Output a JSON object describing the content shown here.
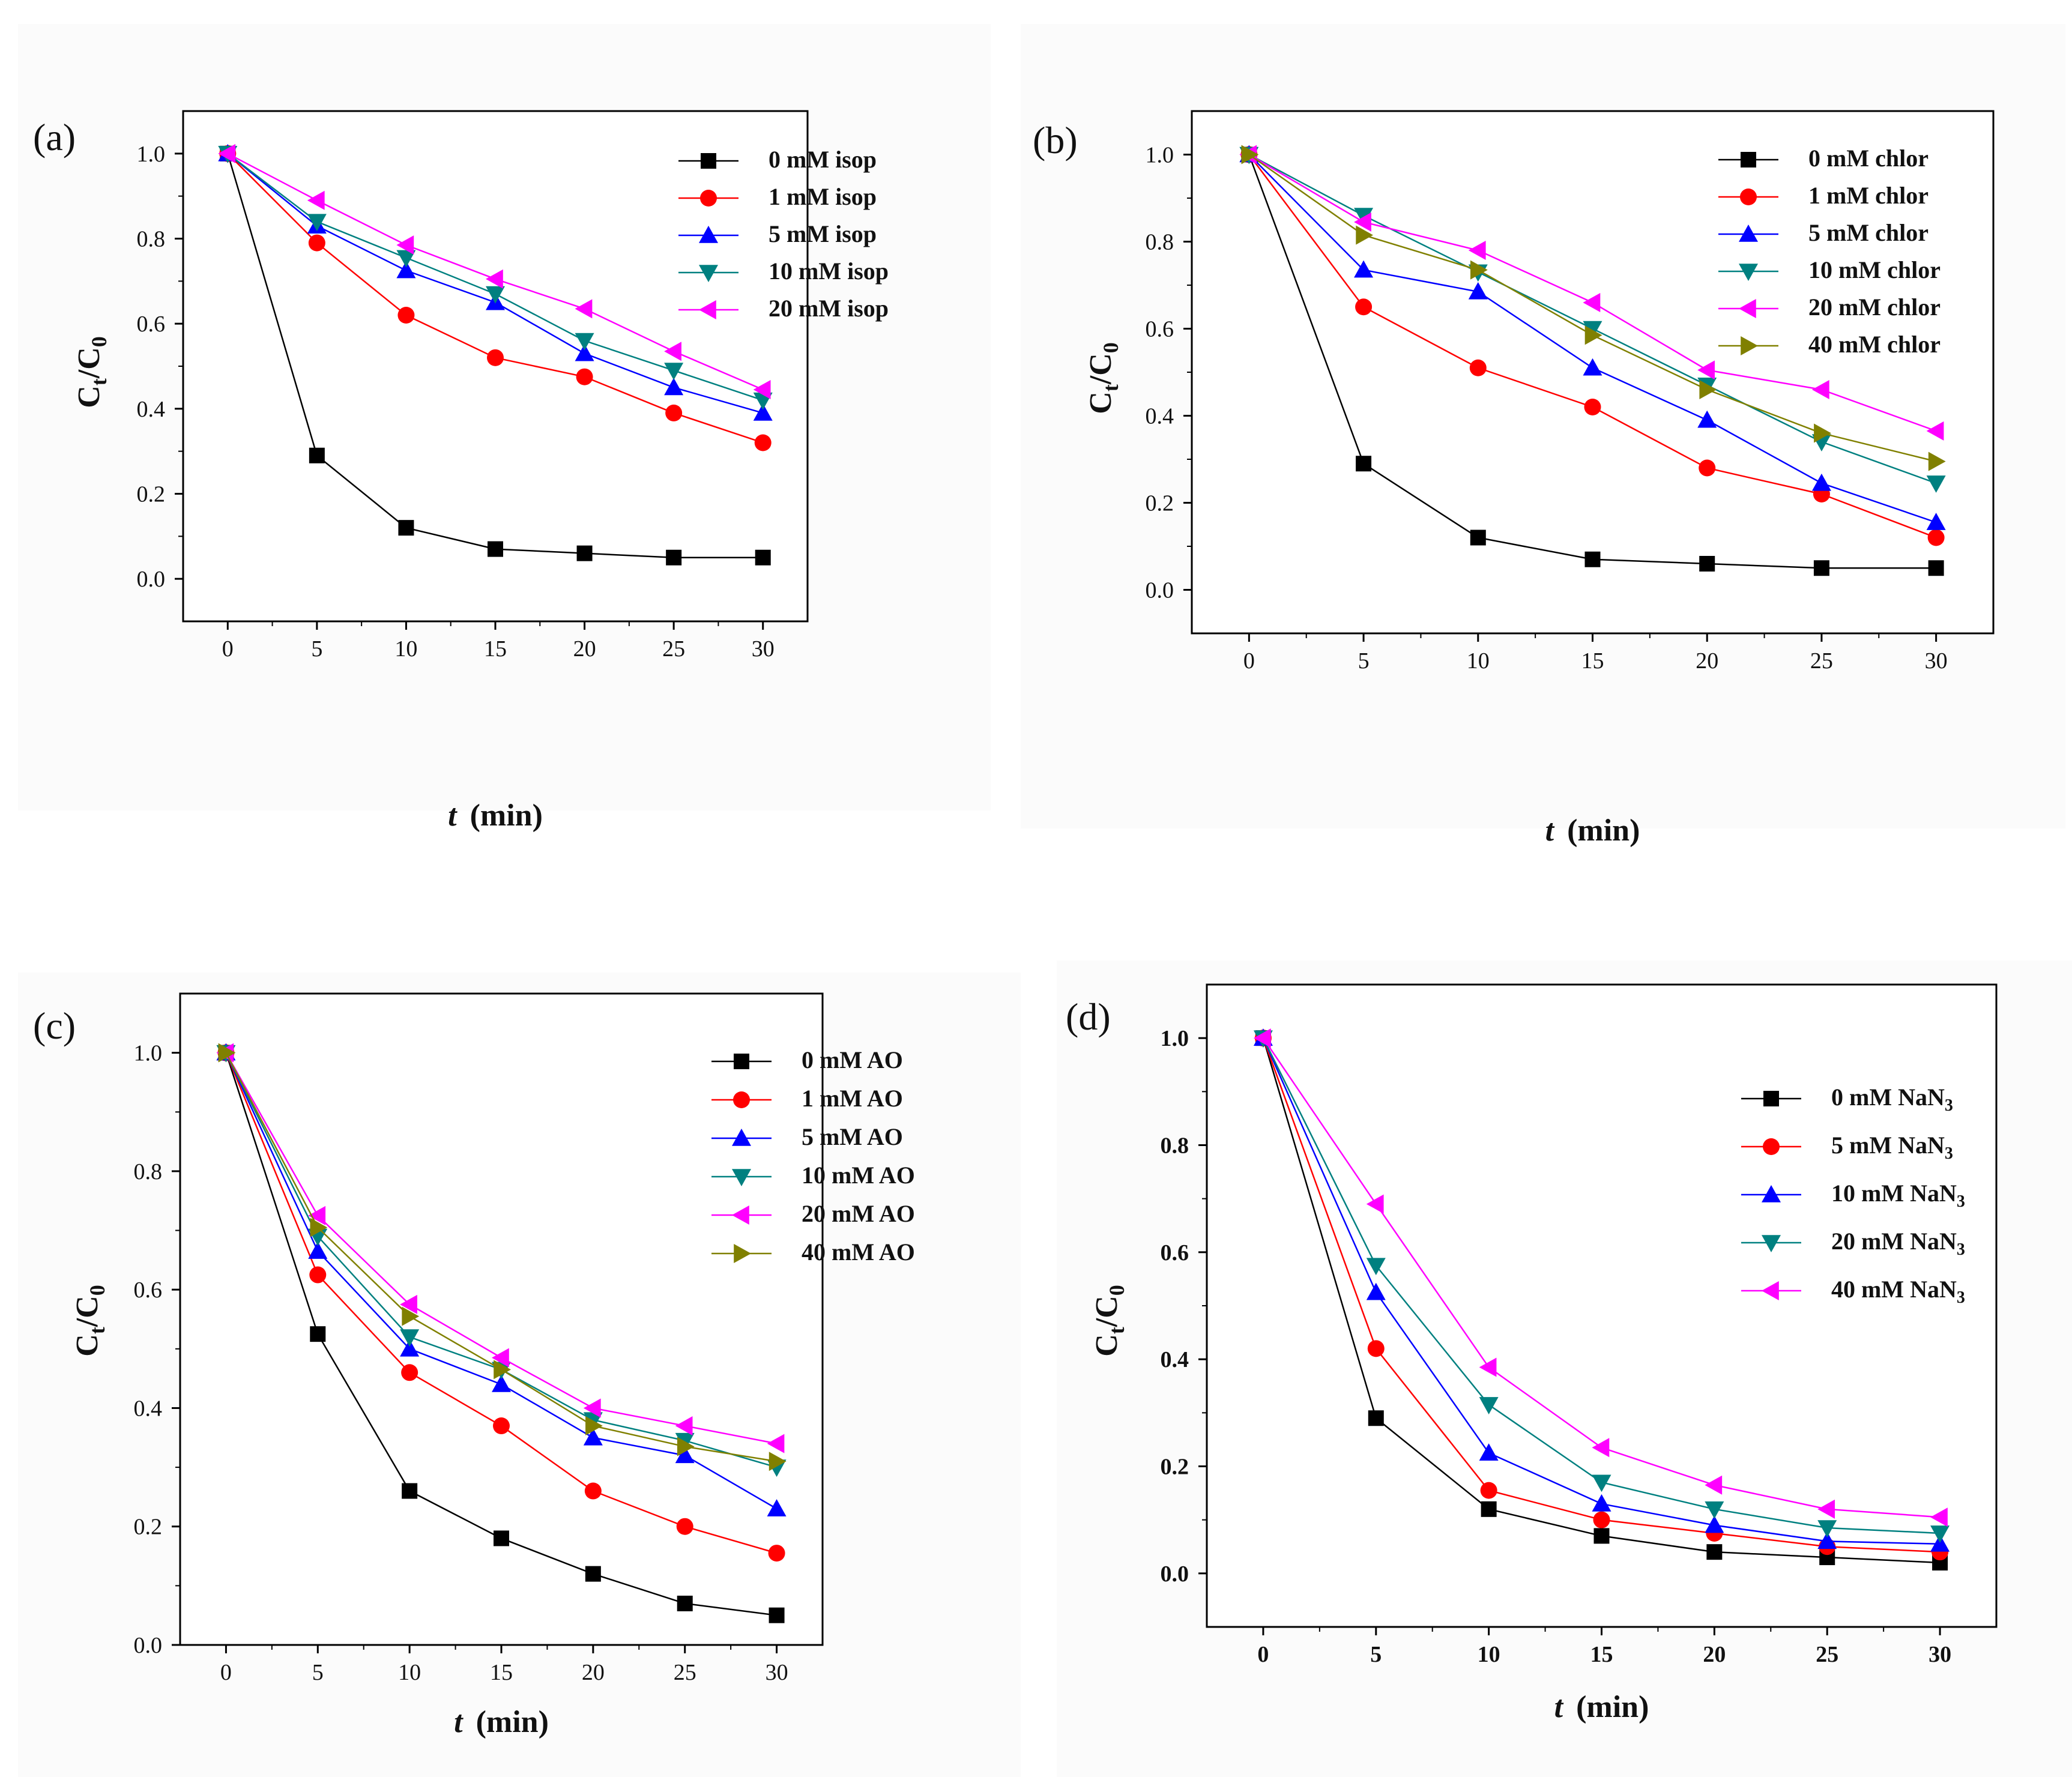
{
  "chart_data": [
    {
      "type": "line",
      "panel_label": "(a)",
      "title": "",
      "xlabel": "t",
      "xlabel_unit": "(min)",
      "ylabel": "Ct/C0",
      "x": [
        0,
        5,
        10,
        15,
        20,
        25,
        30
      ],
      "xlim": [
        -2.5,
        32.5
      ],
      "ylim": [
        -0.1,
        1.1
      ],
      "xticks": [
        "0",
        "5",
        "10",
        "15",
        "20",
        "25",
        "30"
      ],
      "yticks": [
        "0.0",
        "0.2",
        "0.4",
        "0.6",
        "0.8",
        "1.0"
      ],
      "legend_position": "top-right",
      "grid": false,
      "series": [
        {
          "name": "0 mM isop",
          "marker": "square",
          "color": "#000000",
          "values": [
            1.0,
            0.29,
            0.12,
            0.07,
            0.06,
            0.05,
            0.05
          ]
        },
        {
          "name": "1 mM isop",
          "marker": "circle",
          "color": "#ff0000",
          "values": [
            1.0,
            0.79,
            0.62,
            0.52,
            0.475,
            0.39,
            0.32
          ]
        },
        {
          "name": "5 mM isop",
          "marker": "triangle-up",
          "color": "#0000ff",
          "values": [
            1.0,
            0.83,
            0.725,
            0.65,
            0.53,
            0.45,
            0.39
          ]
        },
        {
          "name": "10 mM isop",
          "marker": "triangle-down",
          "color": "#008080",
          "values": [
            1.0,
            0.84,
            0.755,
            0.67,
            0.56,
            0.49,
            0.42
          ]
        },
        {
          "name": "20 mM isop",
          "marker": "triangle-left",
          "color": "#ff00ff",
          "values": [
            1.0,
            0.89,
            0.785,
            0.705,
            0.635,
            0.535,
            0.445
          ]
        }
      ]
    },
    {
      "type": "line",
      "panel_label": "(b)",
      "title": "",
      "xlabel": "t",
      "xlabel_unit": "(min)",
      "ylabel": "Ct/C0",
      "x": [
        0,
        5,
        10,
        15,
        20,
        25,
        30
      ],
      "xlim": [
        -2.5,
        32.5
      ],
      "ylim": [
        -0.1,
        1.1
      ],
      "xticks": [
        "0",
        "5",
        "10",
        "15",
        "20",
        "25",
        "30"
      ],
      "yticks": [
        "0.0",
        "0.2",
        "0.4",
        "0.6",
        "0.8",
        "1.0"
      ],
      "legend_position": "top-right",
      "grid": false,
      "series": [
        {
          "name": "0 mM chlor",
          "marker": "square",
          "color": "#000000",
          "values": [
            1.0,
            0.29,
            0.12,
            0.07,
            0.06,
            0.05,
            0.05
          ]
        },
        {
          "name": "1 mM chlor",
          "marker": "circle",
          "color": "#ff0000",
          "values": [
            1.0,
            0.65,
            0.51,
            0.42,
            0.28,
            0.22,
            0.12
          ]
        },
        {
          "name": "5 mM chlor",
          "marker": "triangle-up",
          "color": "#0000ff",
          "values": [
            1.0,
            0.735,
            0.685,
            0.51,
            0.39,
            0.245,
            0.155
          ]
        },
        {
          "name": "10 mM chlor",
          "marker": "triangle-down",
          "color": "#008080",
          "values": [
            1.0,
            0.86,
            0.73,
            0.6,
            0.47,
            0.34,
            0.245
          ]
        },
        {
          "name": "20 mM chlor",
          "marker": "triangle-left",
          "color": "#ff00ff",
          "values": [
            1.0,
            0.845,
            0.78,
            0.66,
            0.505,
            0.46,
            0.365
          ]
        },
        {
          "name": "40 mM chlor",
          "marker": "triangle-right",
          "color": "#808000",
          "values": [
            1.0,
            0.815,
            0.735,
            0.585,
            0.46,
            0.36,
            0.295
          ]
        }
      ]
    },
    {
      "type": "line",
      "panel_label": "(c)",
      "title": "",
      "xlabel": "t",
      "xlabel_unit": "(min)",
      "ylabel": "Ct/C0",
      "x": [
        0,
        5,
        10,
        15,
        20,
        25,
        30
      ],
      "xlim": [
        -2.5,
        32.5
      ],
      "ylim": [
        0.0,
        1.1
      ],
      "xticks": [
        "0",
        "5",
        "10",
        "15",
        "20",
        "25",
        "30"
      ],
      "yticks": [
        "0.0",
        "0.2",
        "0.4",
        "0.6",
        "0.8",
        "1.0"
      ],
      "legend_position": "top-right",
      "grid": false,
      "series": [
        {
          "name": "0 mM AO",
          "marker": "square",
          "color": "#000000",
          "values": [
            1.0,
            0.525,
            0.26,
            0.18,
            0.12,
            0.07,
            0.05
          ]
        },
        {
          "name": "1 mM AO",
          "marker": "circle",
          "color": "#ff0000",
          "values": [
            1.0,
            0.625,
            0.46,
            0.37,
            0.26,
            0.2,
            0.155
          ]
        },
        {
          "name": "5 mM AO",
          "marker": "triangle-up",
          "color": "#0000ff",
          "values": [
            1.0,
            0.665,
            0.5,
            0.44,
            0.35,
            0.32,
            0.23
          ]
        },
        {
          "name": "10 mM AO",
          "marker": "triangle-down",
          "color": "#008080",
          "values": [
            1.0,
            0.69,
            0.52,
            0.465,
            0.38,
            0.345,
            0.3
          ]
        },
        {
          "name": "20 mM AO",
          "marker": "triangle-left",
          "color": "#ff00ff",
          "values": [
            1.0,
            0.725,
            0.575,
            0.485,
            0.4,
            0.37,
            0.34
          ]
        },
        {
          "name": "40 mM AO",
          "marker": "triangle-right",
          "color": "#808000",
          "values": [
            1.0,
            0.705,
            0.555,
            0.465,
            0.37,
            0.335,
            0.31
          ]
        }
      ]
    },
    {
      "type": "line",
      "panel_label": "(d)",
      "title": "",
      "xlabel": "t",
      "xlabel_unit": "(min)",
      "ylabel": "Ct/C0",
      "x": [
        0,
        5,
        10,
        15,
        20,
        25,
        30
      ],
      "xlim": [
        -2.5,
        32.5
      ],
      "ylim": [
        -0.1,
        1.1
      ],
      "xticks": [
        "0",
        "5",
        "10",
        "15",
        "20",
        "25",
        "30"
      ],
      "yticks": [
        "0.0",
        "0.2",
        "0.4",
        "0.6",
        "0.8",
        "1.0"
      ],
      "legend_position": "top-right",
      "grid": false,
      "series": [
        {
          "name": "0 mM NaN3",
          "marker": "square",
          "color": "#000000",
          "values": [
            1.0,
            0.29,
            0.12,
            0.07,
            0.04,
            0.03,
            0.02
          ]
        },
        {
          "name": "5 mM NaN3",
          "marker": "circle",
          "color": "#ff0000",
          "values": [
            1.0,
            0.42,
            0.155,
            0.1,
            0.075,
            0.05,
            0.04
          ]
        },
        {
          "name": "10 mM NaN3",
          "marker": "triangle-up",
          "color": "#0000ff",
          "values": [
            1.0,
            0.525,
            0.225,
            0.13,
            0.09,
            0.06,
            0.055
          ]
        },
        {
          "name": "20 mM NaN3",
          "marker": "triangle-down",
          "color": "#008080",
          "values": [
            1.0,
            0.575,
            0.315,
            0.17,
            0.12,
            0.085,
            0.075
          ]
        },
        {
          "name": "40 mM NaN3",
          "marker": "triangle-left",
          "color": "#ff00ff",
          "values": [
            1.0,
            0.69,
            0.385,
            0.235,
            0.165,
            0.12,
            0.105
          ]
        }
      ]
    }
  ]
}
